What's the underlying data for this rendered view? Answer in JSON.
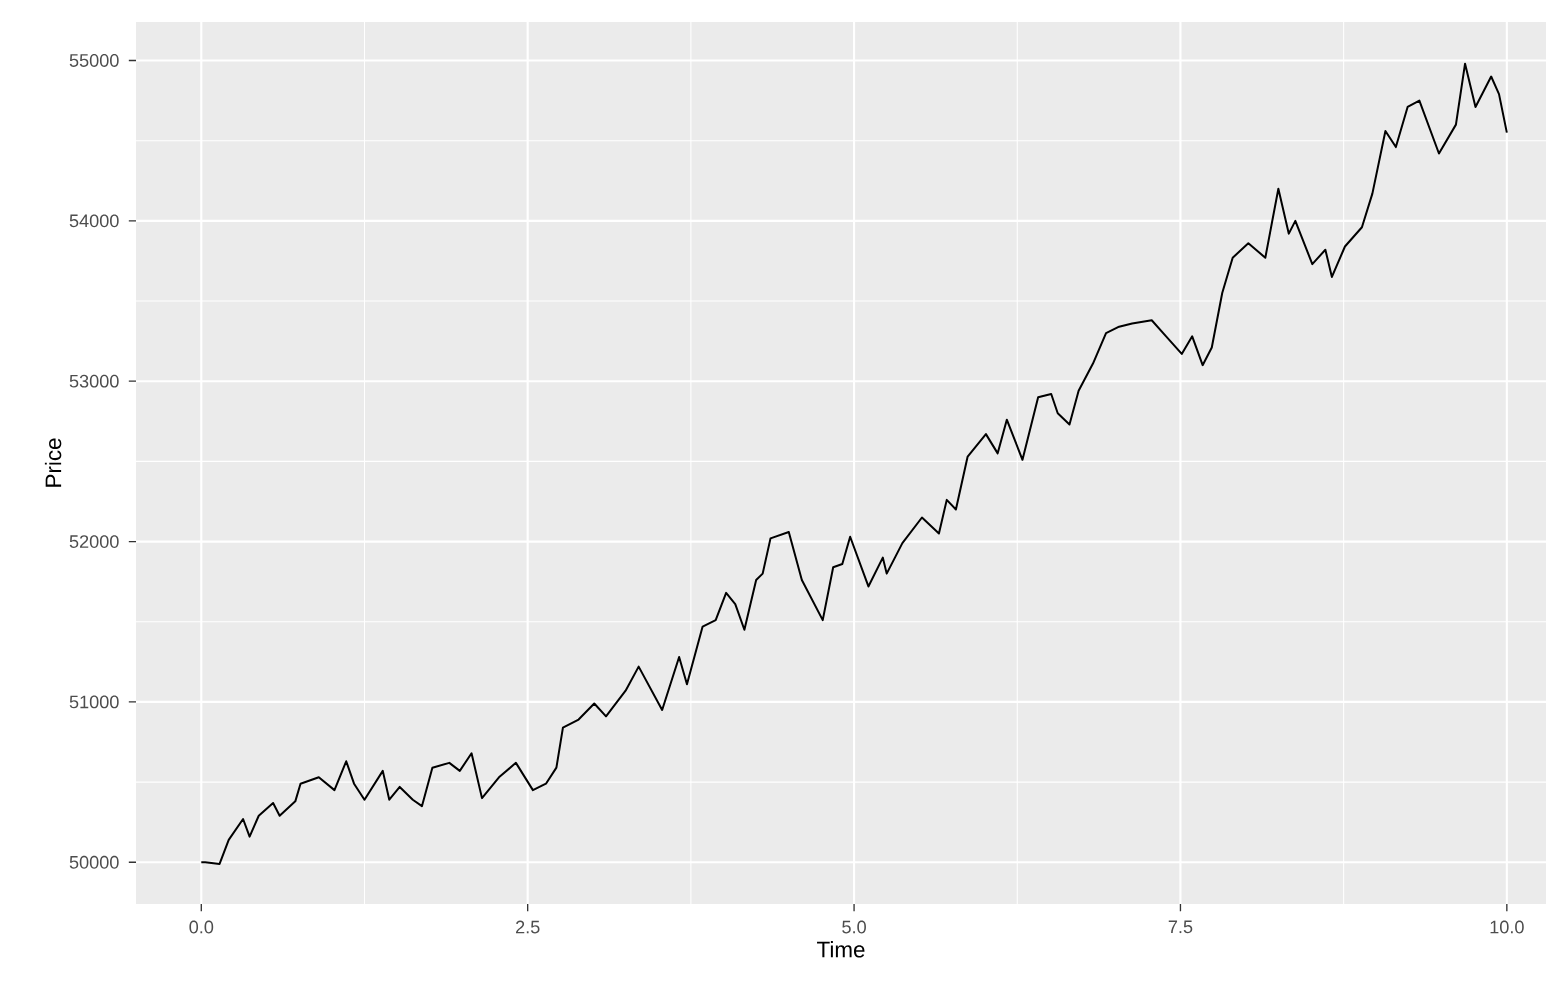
{
  "chart_data": {
    "type": "line",
    "xlabel": "Time",
    "ylabel": "Price",
    "color": "#000000",
    "grid": true,
    "xlim": [
      -0.5,
      10.3
    ],
    "ylim": [
      49740,
      55240
    ],
    "xticks": [
      {
        "value": 0,
        "label": "0.0"
      },
      {
        "value": 2.5,
        "label": "2.5"
      },
      {
        "value": 5,
        "label": "5.0"
      },
      {
        "value": 7.5,
        "label": "7.5"
      },
      {
        "value": 10,
        "label": "10.0"
      }
    ],
    "yticks": [
      50000,
      51000,
      52000,
      53000,
      54000,
      55000
    ],
    "x": [
      0,
      0.03,
      0.14,
      0.21,
      0.32,
      0.37,
      0.44,
      0.55,
      0.6,
      0.72,
      0.76,
      0.9,
      1.02,
      1.11,
      1.17,
      1.25,
      1.39,
      1.44,
      1.52,
      1.62,
      1.69,
      1.77,
      1.9,
      1.98,
      2.07,
      2.15,
      2.28,
      2.41,
      2.54,
      2.64,
      2.72,
      2.77,
      2.89,
      3.01,
      3.1,
      3.25,
      3.35,
      3.53,
      3.66,
      3.72,
      3.84,
      3.94,
      4.02,
      4.09,
      4.16,
      4.25,
      4.3,
      4.36,
      4.5,
      4.6,
      4.76,
      4.84,
      4.91,
      4.97,
      5.11,
      5.22,
      5.25,
      5.37,
      5.52,
      5.65,
      5.71,
      5.78,
      5.87,
      6.01,
      6.1,
      6.17,
      6.29,
      6.41,
      6.51,
      6.56,
      6.65,
      6.72,
      6.83,
      6.93,
      7.03,
      7.13,
      7.28,
      7.39,
      7.51,
      7.59,
      7.67,
      7.74,
      7.82,
      7.9,
      8.02,
      8.15,
      8.25,
      8.33,
      8.38,
      8.51,
      8.61,
      8.66,
      8.76,
      8.89,
      8.97,
      9.07,
      9.15,
      9.24,
      9.33,
      9.48,
      9.61,
      9.68,
      9.76,
      9.88,
      9.94,
      10
    ],
    "values": [
      50000,
      50000,
      49990,
      50140,
      50270,
      50160,
      50290,
      50370,
      50290,
      50380,
      50490,
      50530,
      50450,
      50630,
      50490,
      50390,
      50570,
      50390,
      50470,
      50390,
      50350,
      50590,
      50620,
      50570,
      50680,
      50400,
      50530,
      50620,
      50450,
      50490,
      50590,
      50840,
      50890,
      50990,
      50910,
      51070,
      51220,
      50950,
      51280,
      51110,
      51470,
      51510,
      51680,
      51610,
      51450,
      51760,
      51800,
      52020,
      52060,
      51760,
      51510,
      51840,
      51860,
      52030,
      51720,
      51900,
      51800,
      51990,
      52150,
      52050,
      52260,
      52200,
      52530,
      52670,
      52550,
      52760,
      52510,
      52900,
      52920,
      52800,
      52730,
      52940,
      53110,
      53300,
      53340,
      53360,
      53380,
      53280,
      53170,
      53280,
      53100,
      53210,
      53550,
      53770,
      53860,
      53770,
      54200,
      53920,
      54000,
      53730,
      53820,
      53650,
      53840,
      53960,
      54170,
      54560,
      54460,
      54710,
      54750,
      54420,
      54600,
      54980,
      54710,
      54900,
      54790,
      54550
    ]
  }
}
